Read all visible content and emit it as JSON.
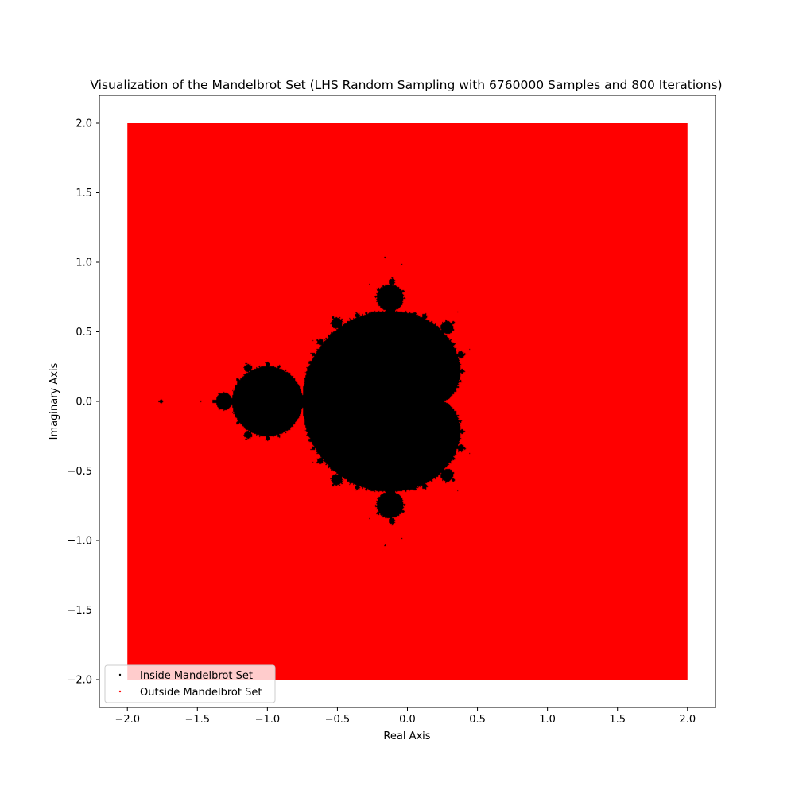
{
  "chart_data": {
    "type": "scatter",
    "title": "Visualization of the Mandelbrot Set (LHS Random Sampling with 6760000 Samples and 800 Iterations)",
    "xlabel": "Real Axis",
    "ylabel": "Imaginary Axis",
    "xlim": [
      -2.2,
      2.2
    ],
    "ylim": [
      -2.2,
      2.2
    ],
    "xticks": [
      -2.0,
      -1.5,
      -1.0,
      -0.5,
      0.0,
      0.5,
      1.0,
      1.5,
      2.0
    ],
    "xtick_labels": [
      "−2.0",
      "−1.5",
      "−1.0",
      "−0.5",
      "0.0",
      "0.5",
      "1.0",
      "1.5",
      "2.0"
    ],
    "yticks": [
      -2.0,
      -1.5,
      -1.0,
      -0.5,
      0.0,
      0.5,
      1.0,
      1.5,
      2.0
    ],
    "ytick_labels": [
      "−2.0",
      "−1.5",
      "−1.0",
      "−0.5",
      "0.0",
      "0.5",
      "1.0",
      "1.5",
      "2.0"
    ],
    "sample_region": {
      "x": [
        -2.0,
        2.0
      ],
      "y": [
        -2.0,
        2.0
      ]
    },
    "max_iterations": 800,
    "grid": false,
    "legend_position": "lower-left",
    "series": [
      {
        "name": "Inside Mandelbrot Set",
        "color": "#000000",
        "marker": "point"
      },
      {
        "name": "Outside Mandelbrot Set",
        "color": "#ff0000",
        "marker": "point"
      }
    ]
  }
}
